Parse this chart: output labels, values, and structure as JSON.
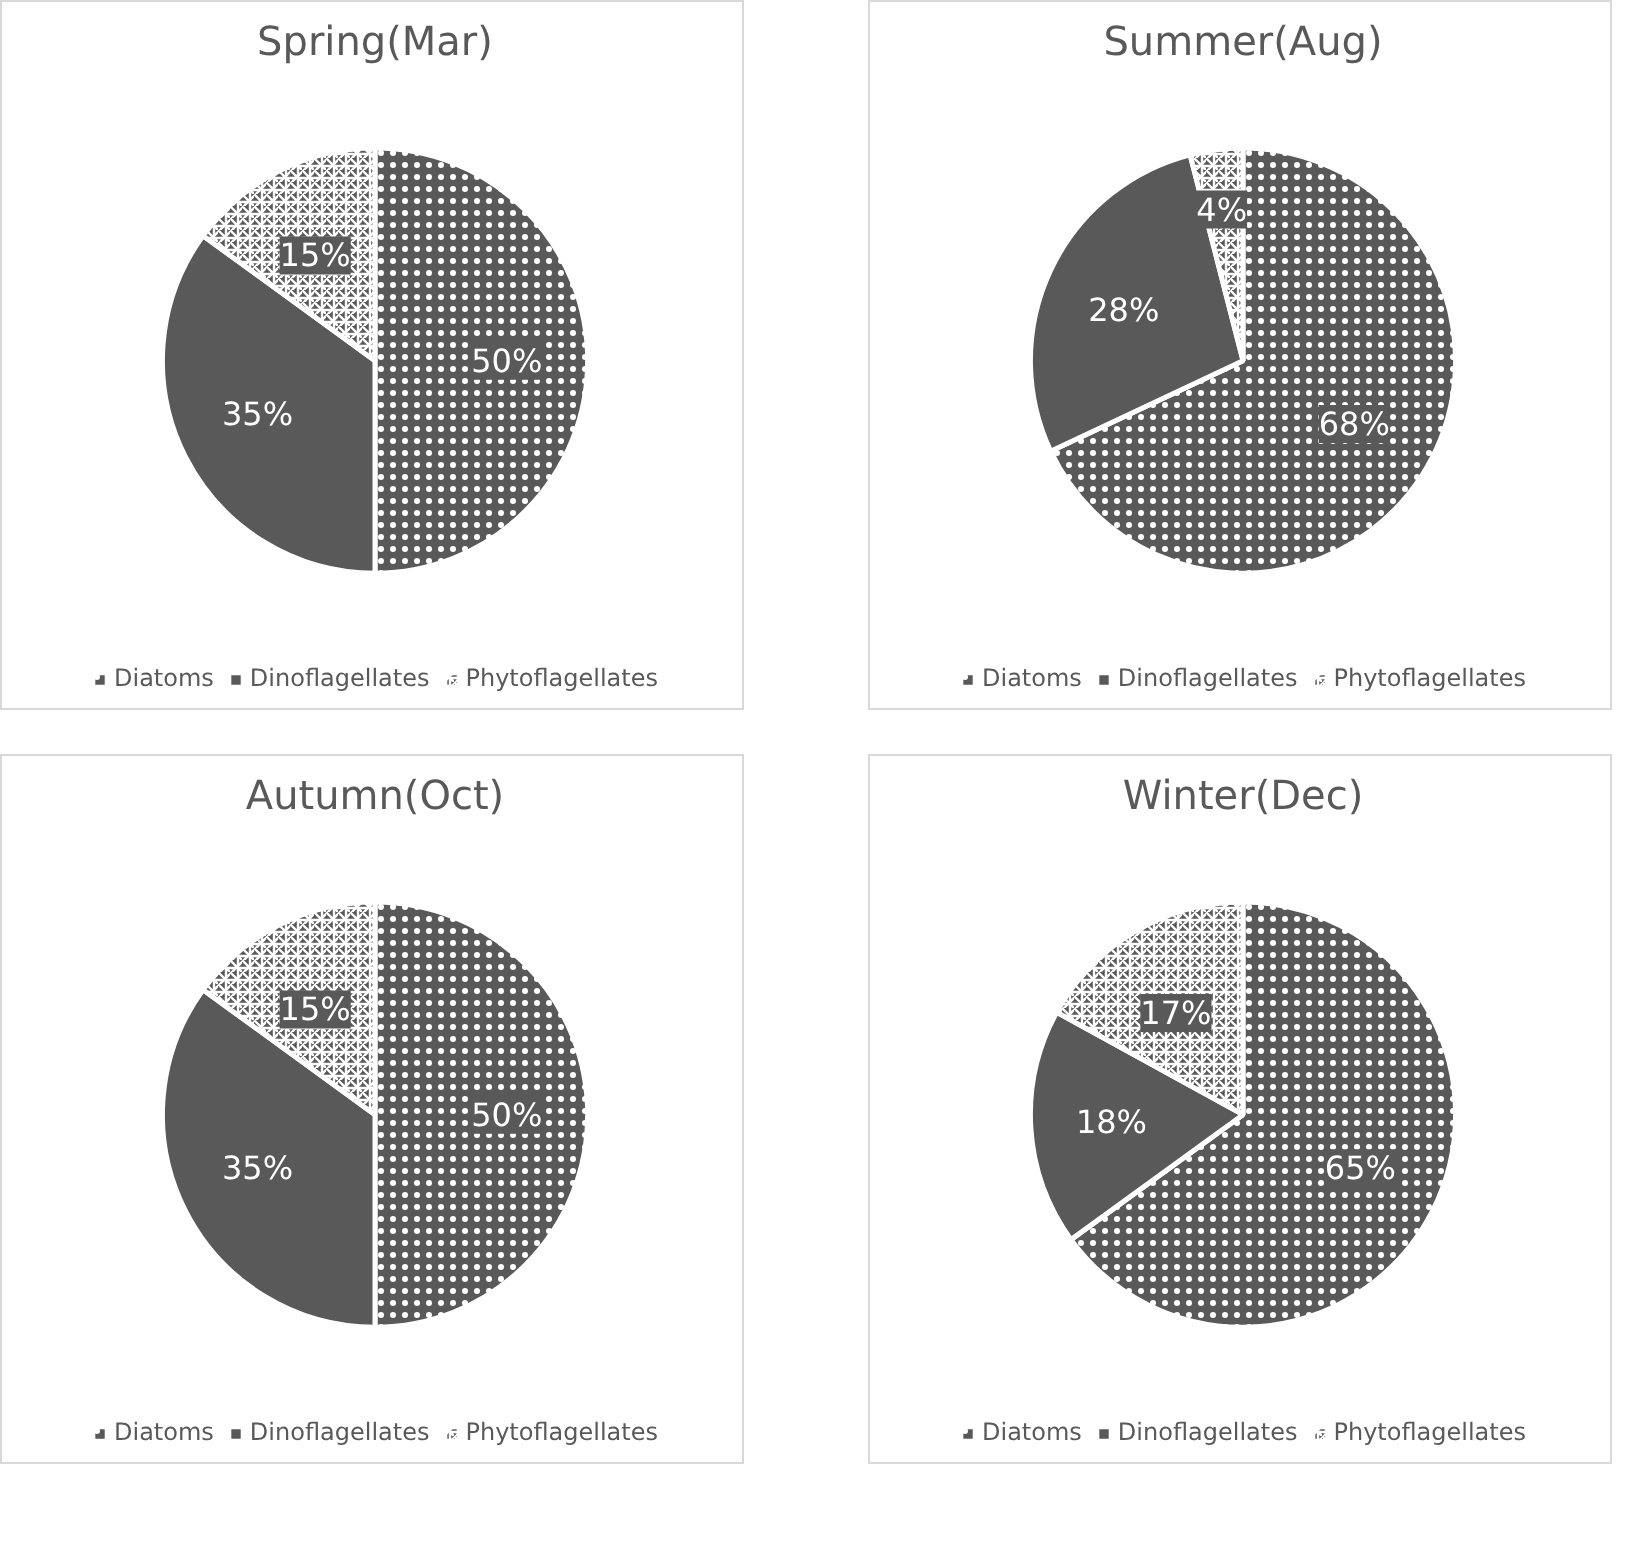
{
  "chart_data": [
    {
      "type": "pie",
      "title": "Spring(Mar)",
      "categories": [
        "Diatoms",
        "Dinoflagellates",
        "Phytoflagellates"
      ],
      "values": [
        50,
        35,
        15
      ],
      "value_labels": [
        "50%",
        "35%",
        "15%"
      ],
      "colors": [
        "#595959",
        "#595959",
        "#595959"
      ],
      "legend": "bottom"
    },
    {
      "type": "pie",
      "title": "Summer(Aug)",
      "categories": [
        "Diatoms",
        "Dinoflagellates",
        "Phytoflagellates"
      ],
      "values": [
        68,
        28,
        4
      ],
      "value_labels": [
        "68%",
        "28%",
        "4%"
      ],
      "colors": [
        "#595959",
        "#595959",
        "#595959"
      ],
      "legend": "bottom"
    },
    {
      "type": "pie",
      "title": "Autumn(Oct)",
      "categories": [
        "Diatoms",
        "Dinoflagellates",
        "Phytoflagellates"
      ],
      "values": [
        50,
        35,
        15
      ],
      "value_labels": [
        "50%",
        "35%",
        "15%"
      ],
      "colors": [
        "#595959",
        "#595959",
        "#595959"
      ],
      "legend": "bottom"
    },
    {
      "type": "pie",
      "title": "Winter(Dec)",
      "categories": [
        "Diatoms",
        "Dinoflagellates",
        "Phytoflagellates"
      ],
      "values": [
        65,
        18,
        17
      ],
      "value_labels": [
        "65%",
        "18%",
        "17%"
      ],
      "colors": [
        "#595959",
        "#595959",
        "#595959"
      ],
      "legend": "bottom"
    }
  ]
}
